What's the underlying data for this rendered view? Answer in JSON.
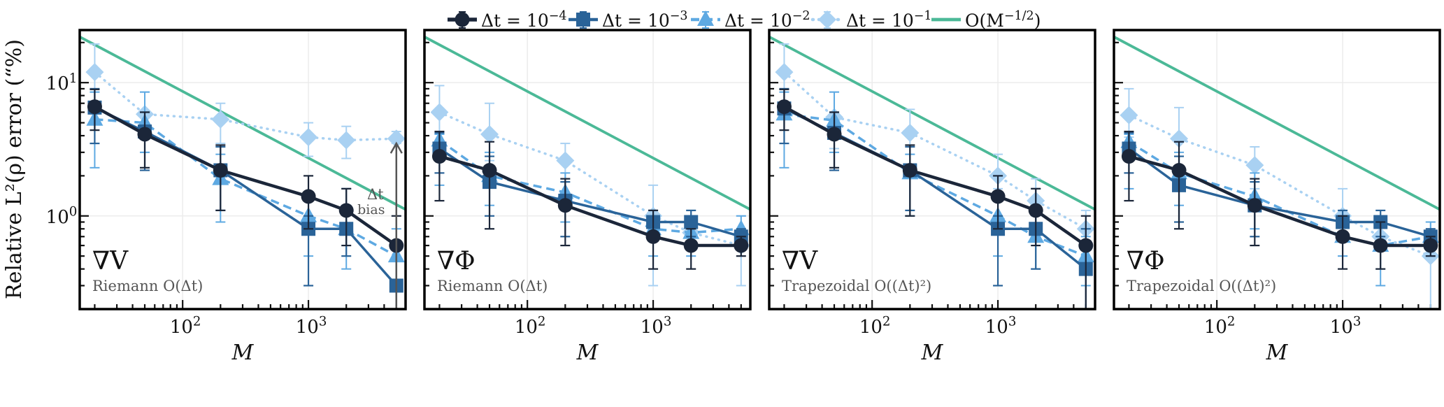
{
  "colors": {
    "dt1e-4": "#1b2639",
    "dt1e-3": "#2a6398",
    "dt1e-2": "#5ea9e2",
    "dt1e-1": "#a9d1f2",
    "reference": "#4bb997",
    "annotation": "#555555",
    "grid": "#ececec"
  },
  "legend": {
    "placement": "top-center",
    "items": [
      {
        "key": "dt1e-4",
        "marker": "circle",
        "line": "solid",
        "prefix": "Δt = 10",
        "exp": "−4"
      },
      {
        "key": "dt1e-3",
        "marker": "square",
        "line": "solid",
        "prefix": "Δt = 10",
        "exp": "−3"
      },
      {
        "key": "dt1e-2",
        "marker": "triangle",
        "line": "dashed",
        "prefix": "Δt = 10",
        "exp": "−2"
      },
      {
        "key": "dt1e-1",
        "marker": "diamond",
        "line": "dotted",
        "prefix": "Δt = 10",
        "exp": "−1"
      },
      {
        "key": "reference",
        "marker": "none",
        "line": "solid",
        "prefix": "O(M",
        "exp": "−1/2",
        "suffix": ")"
      }
    ]
  },
  "chart_data": [
    {
      "type": "line",
      "panel_label": "∇V",
      "method_label": "Riemann O(Δt)",
      "xlabel": "M",
      "ylabel": "Relative L²(ρ) error (“%)",
      "xscale": "log",
      "yscale": "log",
      "xlim": [
        15.2,
        5920
      ],
      "ylim": [
        0.2,
        24.8
      ],
      "xticks": [
        {
          "value": 100,
          "label": "10",
          "exp": "2"
        },
        {
          "value": 1000,
          "label": "10",
          "exp": "3"
        }
      ],
      "yticks": [
        {
          "value": 1,
          "label": "10",
          "exp": "0"
        },
        {
          "value": 10,
          "label": "10",
          "exp": "1"
        }
      ],
      "grid": true,
      "x": [
        20,
        50,
        200,
        1000,
        2000,
        5000
      ],
      "reference": {
        "name": "O(M^-1/2)",
        "coefficient": 86,
        "power": -0.5
      },
      "series": [
        {
          "key": "dt1e-4",
          "y": [
            6.6,
            4.1,
            2.2,
            1.4,
            1.1,
            0.6
          ],
          "lo": [
            4.4,
            2.3,
            1.1,
            0.8,
            0.6,
            0.2
          ],
          "hi": [
            8.9,
            6.0,
            3.4,
            2.0,
            1.6,
            1.0
          ]
        },
        {
          "key": "dt1e-3",
          "y": [
            6.5,
            4.3,
            2.2,
            0.8,
            0.8,
            0.3
          ],
          "lo": [
            3.5,
            2.2,
            1.1,
            0.3,
            0.5,
            0.2
          ],
          "hi": [
            9.0,
            6.0,
            3.3,
            1.0,
            1.6,
            0.6
          ]
        },
        {
          "key": "dt1e-2",
          "y": [
            5.3,
            5.0,
            1.9,
            1.0,
            0.8,
            0.5
          ],
          "lo": [
            2.3,
            3.0,
            0.9,
            0.5,
            0.4,
            0.2
          ],
          "hi": [
            8.5,
            8.5,
            2.9,
            1.3,
            1.2,
            0.8
          ]
        },
        {
          "key": "dt1e-1",
          "y": [
            12.0,
            5.8,
            5.3,
            3.9,
            3.7,
            3.8
          ],
          "lo": [
            8.5,
            3.0,
            3.5,
            2.8,
            2.7,
            3.5
          ],
          "hi": [
            19.5,
            8.5,
            7.0,
            5.0,
            4.7,
            4.3
          ]
        }
      ],
      "annotation": {
        "line1": "Δt",
        "line2": "bias",
        "arrow_x": 5000,
        "arrow_from": 0.2,
        "arrow_to": 3.5
      }
    },
    {
      "type": "line",
      "panel_label": "∇Φ",
      "method_label": "Riemann O(Δt)",
      "xlabel": "M",
      "xscale": "log",
      "yscale": "log",
      "xlim": [
        15.2,
        5920
      ],
      "ylim": [
        0.2,
        24.8
      ],
      "xticks": [
        {
          "value": 100,
          "label": "10",
          "exp": "2"
        },
        {
          "value": 1000,
          "label": "10",
          "exp": "3"
        }
      ],
      "grid": true,
      "x": [
        20,
        50,
        200,
        1000,
        2000,
        5000
      ],
      "reference": {
        "name": "O(M^-1/2)",
        "coefficient": 86,
        "power": -0.5
      },
      "series": [
        {
          "key": "dt1e-4",
          "y": [
            2.8,
            2.2,
            1.2,
            0.7,
            0.6,
            0.6
          ],
          "lo": [
            1.3,
            0.8,
            0.6,
            0.4,
            0.4,
            0.5
          ],
          "hi": [
            4.3,
            3.6,
            1.9,
            1.1,
            0.8,
            0.7
          ]
        },
        {
          "key": "dt1e-3",
          "y": [
            3.2,
            1.8,
            1.3,
            0.9,
            0.9,
            0.7
          ],
          "lo": [
            2.1,
            1.0,
            0.7,
            0.7,
            0.7,
            0.6
          ],
          "hi": [
            4.2,
            2.8,
            1.8,
            1.1,
            1.1,
            0.8
          ]
        },
        {
          "key": "dt1e-2",
          "y": [
            3.7,
            2.0,
            1.5,
            0.8,
            0.75,
            0.8
          ],
          "lo": [
            1.7,
            1.2,
            0.9,
            0.5,
            0.5,
            0.6
          ],
          "hi": [
            4.1,
            3.0,
            2.1,
            1.0,
            0.9,
            1.0
          ]
        },
        {
          "key": "dt1e-1",
          "y": [
            6.0,
            4.1,
            2.6,
            1.0,
            0.75,
            0.6
          ],
          "lo": [
            4.1,
            2.6,
            1.9,
            0.3,
            0.5,
            0.3
          ],
          "hi": [
            9.5,
            7.0,
            3.5,
            1.7,
            1.1,
            1.0
          ]
        }
      ]
    },
    {
      "type": "line",
      "panel_label": "∇V",
      "method_label": "Trapezoidal O((Δt)²)",
      "xlabel": "M",
      "xscale": "log",
      "yscale": "log",
      "xlim": [
        15.2,
        5920
      ],
      "ylim": [
        0.2,
        24.8
      ],
      "xticks": [
        {
          "value": 100,
          "label": "10",
          "exp": "2"
        },
        {
          "value": 1000,
          "label": "10",
          "exp": "3"
        }
      ],
      "grid": true,
      "x": [
        20,
        50,
        200,
        1000,
        2000,
        5000
      ],
      "reference": {
        "name": "O(M^-1/2)",
        "coefficient": 86,
        "power": -0.5
      },
      "series": [
        {
          "key": "dt1e-4",
          "y": [
            6.6,
            4.1,
            2.2,
            1.4,
            1.1,
            0.6
          ],
          "lo": [
            4.4,
            2.3,
            1.0,
            0.8,
            0.6,
            0.2
          ],
          "hi": [
            8.9,
            6.0,
            3.4,
            2.0,
            1.6,
            1.0
          ]
        },
        {
          "key": "dt1e-3",
          "y": [
            6.4,
            4.2,
            2.2,
            0.8,
            0.8,
            0.4
          ],
          "lo": [
            3.5,
            2.2,
            1.1,
            0.3,
            0.4,
            0.2
          ],
          "hi": [
            9.0,
            6.0,
            3.3,
            1.0,
            1.6,
            0.8
          ]
        },
        {
          "key": "dt1e-2",
          "y": [
            5.8,
            5.2,
            2.1,
            1.0,
            0.7,
            0.5
          ],
          "lo": [
            2.3,
            3.0,
            1.0,
            0.5,
            0.4,
            0.3
          ],
          "hi": [
            8.5,
            8.5,
            2.9,
            1.3,
            1.1,
            0.7
          ]
        },
        {
          "key": "dt1e-1",
          "y": [
            12.0,
            5.5,
            4.2,
            2.0,
            1.3,
            0.8
          ],
          "lo": [
            8.5,
            3.2,
            2.9,
            1.6,
            1.0,
            0.6
          ],
          "hi": [
            19.5,
            8.5,
            6.3,
            2.9,
            1.9,
            1.1
          ]
        }
      ]
    },
    {
      "type": "line",
      "panel_label": "∇Φ",
      "method_label": "Trapezoidal O((Δt)²)",
      "xlabel": "M",
      "xscale": "log",
      "yscale": "log",
      "xlim": [
        15.2,
        5920
      ],
      "ylim": [
        0.2,
        24.8
      ],
      "xticks": [
        {
          "value": 100,
          "label": "10",
          "exp": "2"
        },
        {
          "value": 1000,
          "label": "10",
          "exp": "3"
        }
      ],
      "grid": true,
      "x": [
        20,
        50,
        200,
        1000,
        2000,
        5000
      ],
      "reference": {
        "name": "O(M^-1/2)",
        "coefficient": 86,
        "power": -0.5
      },
      "series": [
        {
          "key": "dt1e-4",
          "y": [
            2.8,
            2.2,
            1.2,
            0.7,
            0.6,
            0.6
          ],
          "lo": [
            1.3,
            0.8,
            0.6,
            0.4,
            0.4,
            0.5
          ],
          "hi": [
            4.3,
            3.6,
            1.9,
            1.0,
            0.9,
            0.7
          ]
        },
        {
          "key": "dt1e-3",
          "y": [
            3.2,
            1.7,
            1.2,
            0.9,
            0.9,
            0.7
          ],
          "lo": [
            2.1,
            0.9,
            0.7,
            0.7,
            0.7,
            0.6
          ],
          "hi": [
            4.2,
            2.8,
            1.8,
            1.1,
            1.1,
            0.8
          ]
        },
        {
          "key": "dt1e-2",
          "y": [
            3.6,
            2.1,
            1.4,
            0.7,
            0.6,
            0.7
          ],
          "lo": [
            1.6,
            1.2,
            0.8,
            0.5,
            0.3,
            0.6
          ],
          "hi": [
            4.1,
            3.0,
            2.1,
            1.0,
            0.9,
            0.9
          ]
        },
        {
          "key": "dt1e-1",
          "y": [
            5.7,
            3.8,
            2.4,
            1.0,
            0.7,
            0.5
          ],
          "lo": [
            3.9,
            2.3,
            1.6,
            0.5,
            0.4,
            0.2
          ],
          "hi": [
            9.0,
            6.5,
            3.3,
            1.6,
            1.0,
            0.9
          ]
        }
      ]
    }
  ]
}
